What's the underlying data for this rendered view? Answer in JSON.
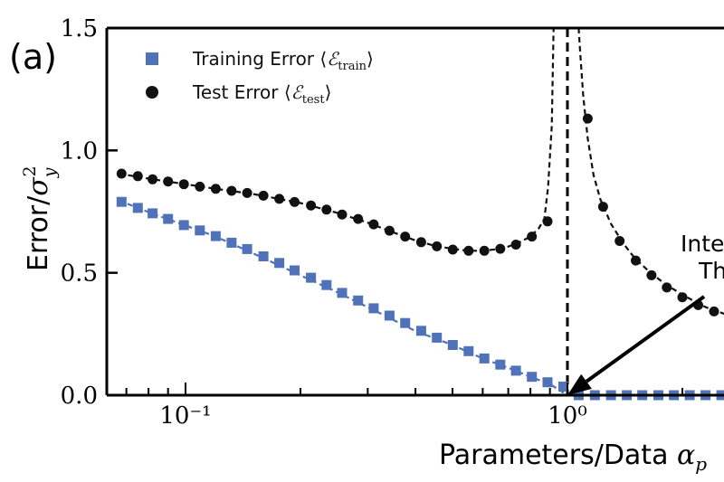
{
  "panel_label": "(a)",
  "colors": {
    "train": "#4f72b8",
    "test": "#111111",
    "axis": "#000000"
  },
  "chart_data": {
    "type": "scatter",
    "x_scale": "log",
    "xlim": [
      0.067,
      3.8
    ],
    "ylim": [
      0,
      1.5
    ],
    "xlabel": "Parameters/Data α_p",
    "ylabel": "Error/σ²_y",
    "yticks": [
      {
        "value": 0.0,
        "label": "0.0"
      },
      {
        "value": 0.5,
        "label": "0.5"
      },
      {
        "value": 1.0,
        "label": "1.0"
      },
      {
        "value": 1.5,
        "label": "1.5"
      }
    ],
    "xticks": [
      {
        "value": 0.1,
        "label": "10⁻¹"
      },
      {
        "value": 1.0,
        "label": "10⁰"
      }
    ],
    "legend_position": "top-left",
    "vline": {
      "x": 1.0,
      "style": "dashed"
    },
    "annotation": {
      "lines": [
        "Inte",
        "Th"
      ],
      "arrow_to": {
        "x": 1.0,
        "y": 0.0
      }
    },
    "series": [
      {
        "name": "Training Error ⟨ℰ_train⟩",
        "marker": "square",
        "x": [
          0.068,
          0.075,
          0.082,
          0.09,
          0.099,
          0.109,
          0.12,
          0.132,
          0.145,
          0.16,
          0.176,
          0.193,
          0.213,
          0.234,
          0.257,
          0.283,
          0.311,
          0.342,
          0.376,
          0.414,
          0.455,
          0.501,
          0.551,
          0.606,
          0.667,
          0.733,
          0.807,
          0.887,
          0.976,
          1.07,
          1.18,
          1.3,
          1.43,
          1.57,
          1.73,
          1.9,
          2.09,
          2.3,
          2.53,
          2.78,
          3.06,
          3.37,
          3.7
        ],
        "y": [
          0.79,
          0.765,
          0.743,
          0.72,
          0.695,
          0.673,
          0.65,
          0.623,
          0.597,
          0.567,
          0.54,
          0.51,
          0.48,
          0.45,
          0.418,
          0.387,
          0.355,
          0.325,
          0.295,
          0.263,
          0.235,
          0.205,
          0.18,
          0.15,
          0.125,
          0.1,
          0.075,
          0.053,
          0.035,
          0.0,
          0.0,
          0.0,
          0.0,
          0.0,
          0.0,
          0.0,
          0.0,
          0.0,
          0.0,
          0.0,
          0.0,
          0.0,
          0.0
        ]
      },
      {
        "name": "Test Error ⟨ℰ_test⟩",
        "marker": "circle",
        "x": [
          0.068,
          0.075,
          0.082,
          0.09,
          0.099,
          0.109,
          0.12,
          0.132,
          0.145,
          0.16,
          0.176,
          0.193,
          0.213,
          0.234,
          0.257,
          0.283,
          0.311,
          0.342,
          0.376,
          0.414,
          0.455,
          0.501,
          0.551,
          0.606,
          0.667,
          0.733,
          0.807,
          0.887,
          1.13,
          1.24,
          1.37,
          1.51,
          1.66,
          1.82,
          2.0,
          2.2,
          2.42,
          2.66,
          2.93,
          3.22,
          3.55
        ],
        "y": [
          0.905,
          0.895,
          0.882,
          0.873,
          0.862,
          0.852,
          0.843,
          0.835,
          0.826,
          0.815,
          0.802,
          0.789,
          0.775,
          0.758,
          0.738,
          0.72,
          0.698,
          0.672,
          0.648,
          0.625,
          0.608,
          0.595,
          0.59,
          0.59,
          0.598,
          0.615,
          0.648,
          0.71,
          1.13,
          0.77,
          0.63,
          0.55,
          0.49,
          0.44,
          0.4,
          0.368,
          0.342,
          0.322,
          0.305,
          0.29,
          0.278
        ]
      }
    ],
    "theory_curves": [
      {
        "for": "train",
        "style": "dashed",
        "x": [
          0.067,
          0.08,
          0.1,
          0.12,
          0.15,
          0.2,
          0.25,
          0.3,
          0.4,
          0.5,
          0.6,
          0.7,
          0.8,
          0.9,
          1.0,
          1.5,
          2.0,
          3.0,
          3.8
        ],
        "y": [
          0.795,
          0.748,
          0.693,
          0.648,
          0.58,
          0.49,
          0.42,
          0.36,
          0.262,
          0.205,
          0.15,
          0.112,
          0.075,
          0.045,
          0.0,
          0.0,
          0.0,
          0.0,
          0.0
        ]
      },
      {
        "for": "test-left",
        "style": "dashed",
        "x": [
          0.067,
          0.08,
          0.1,
          0.12,
          0.15,
          0.2,
          0.25,
          0.3,
          0.35,
          0.4,
          0.45,
          0.5,
          0.55,
          0.6,
          0.65,
          0.7,
          0.75,
          0.8,
          0.84,
          0.87,
          0.89,
          0.91,
          0.92
        ],
        "y": [
          0.905,
          0.885,
          0.862,
          0.843,
          0.822,
          0.785,
          0.745,
          0.705,
          0.665,
          0.632,
          0.61,
          0.598,
          0.59,
          0.59,
          0.596,
          0.607,
          0.625,
          0.648,
          0.68,
          0.72,
          0.85,
          1.1,
          1.5
        ]
      },
      {
        "for": "test-right",
        "style": "dashed",
        "x": [
          1.07,
          1.08,
          1.1,
          1.13,
          1.17,
          1.22,
          1.3,
          1.4,
          1.5,
          1.65,
          1.8,
          2.0,
          2.3,
          2.6,
          3.0,
          3.4,
          3.8
        ],
        "y": [
          1.5,
          1.4,
          1.22,
          1.05,
          0.9,
          0.8,
          0.7,
          0.62,
          0.56,
          0.5,
          0.455,
          0.41,
          0.36,
          0.33,
          0.3,
          0.283,
          0.27
        ]
      }
    ]
  }
}
